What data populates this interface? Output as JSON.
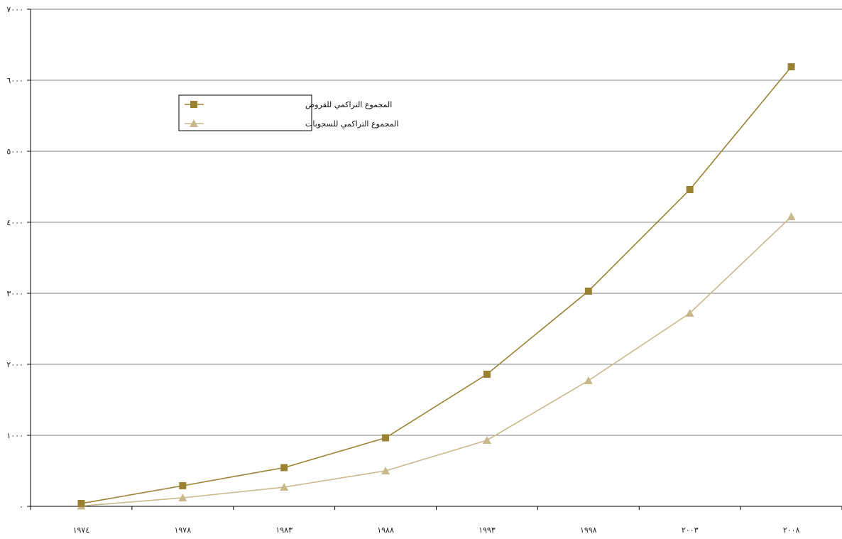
{
  "chart_data": {
    "type": "line",
    "title": "",
    "xlabel": "",
    "ylabel": "",
    "categories": [
      "١٩٧٤",
      "١٩٧٨",
      "١٩٨٣",
      "١٩٨٨",
      "١٩٩٣",
      "١٩٩٨",
      "٢٠٠٣",
      "٢٠٠٨"
    ],
    "ylim": [
      0,
      7000
    ],
    "yticks": [
      0,
      1000,
      2000,
      3000,
      4000,
      5000,
      6000,
      7000
    ],
    "ytick_labels": [
      "٠",
      "١٠٠٠",
      "٢٠٠٠",
      "٣٠٠٠",
      "٤٠٠٠",
      "٥٠٠٠",
      "٦٠٠٠",
      "٧٠٠٠"
    ],
    "grid": "horizontal",
    "legend_position": "upper-left",
    "series": [
      {
        "name": "المجموع التراكمي للقروض",
        "marker": "square",
        "color": "#9a8232",
        "values": [
          40,
          290,
          545,
          965,
          1860,
          3030,
          4460,
          6190
        ]
      },
      {
        "name": "المجموع التراكمي للسحوبات",
        "marker": "triangle",
        "color": "#c9b98a",
        "values": [
          5,
          120,
          270,
          500,
          930,
          1770,
          2720,
          4080
        ]
      }
    ]
  }
}
